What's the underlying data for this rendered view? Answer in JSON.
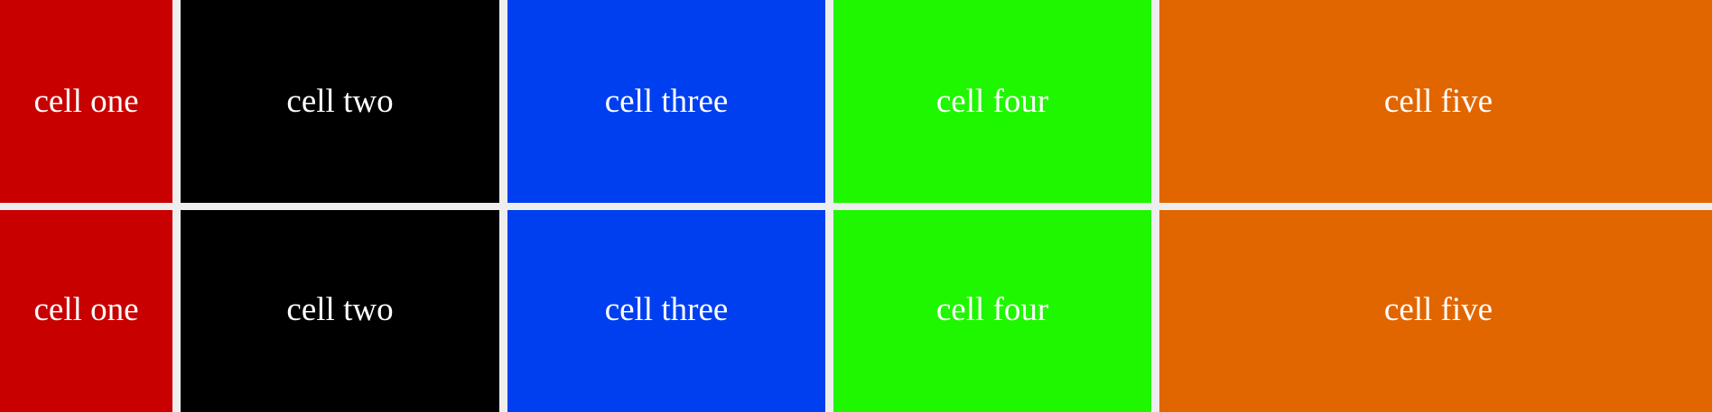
{
  "rows": [
    {
      "cells": [
        {
          "label": "cell one",
          "color": "#c80000"
        },
        {
          "label": "cell two",
          "color": "#000000"
        },
        {
          "label": "cell three",
          "color": "#003ff0"
        },
        {
          "label": "cell four",
          "color": "#1ff700"
        },
        {
          "label": "cell five",
          "color": "#e26600"
        }
      ]
    },
    {
      "cells": [
        {
          "label": "cell one",
          "color": "#c80000"
        },
        {
          "label": "cell two",
          "color": "#000000"
        },
        {
          "label": "cell three",
          "color": "#003ff0"
        },
        {
          "label": "cell four",
          "color": "#1ff700"
        },
        {
          "label": "cell five",
          "color": "#e26600"
        }
      ]
    }
  ]
}
